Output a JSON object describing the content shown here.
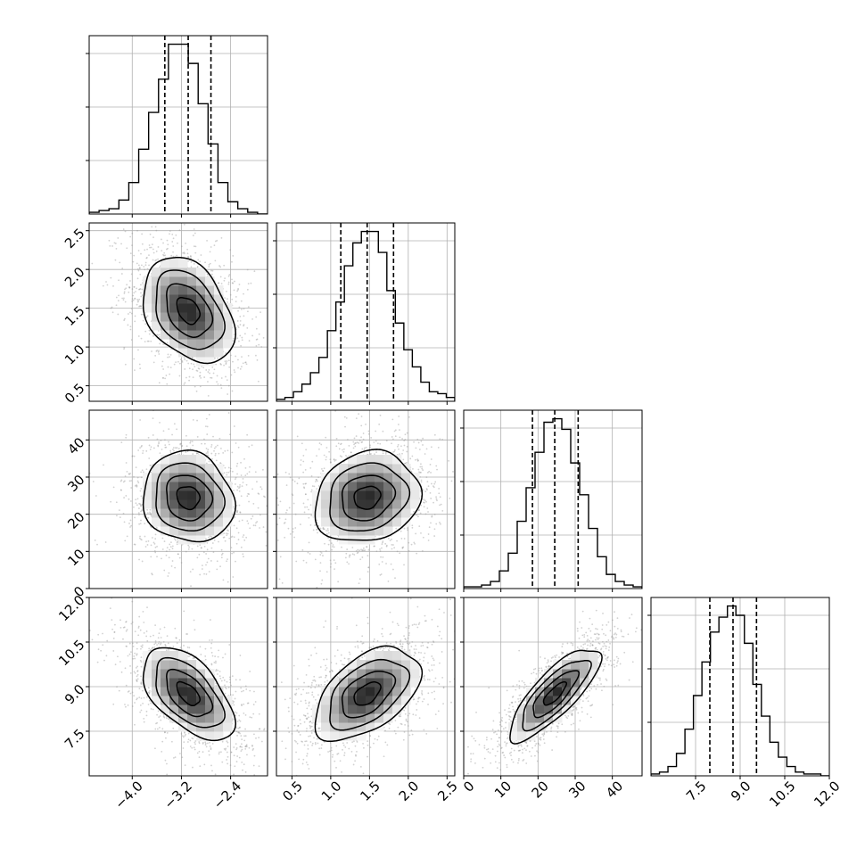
{
  "chart_data": {
    "type": "corner",
    "params": [
      {
        "xlim": [
          -4.7,
          -1.8
        ],
        "ticks": [
          -4.0,
          -3.2,
          -2.4
        ],
        "tick_labels": [
          "−4.0",
          "−3.2",
          "−2.4"
        ],
        "quantiles": [
          -3.47,
          -3.09,
          -2.72
        ]
      },
      {
        "xlim": [
          0.3,
          2.6
        ],
        "ticks": [
          0.5,
          1.0,
          1.5,
          2.0,
          2.5
        ],
        "tick_labels": [
          "0.5",
          "1.0",
          "1.5",
          "2.0",
          "2.5"
        ],
        "quantiles": [
          1.13,
          1.47,
          1.81
        ]
      },
      {
        "xlim": [
          0,
          48
        ],
        "ticks": [
          0,
          10,
          20,
          30,
          40
        ],
        "tick_labels": [
          "0",
          "10",
          "20",
          "30",
          "40"
        ],
        "quantiles": [
          18.5,
          24.5,
          30.8
        ]
      },
      {
        "xlim": [
          6.0,
          12.0
        ],
        "ticks": [
          7.5,
          9.0,
          10.5,
          12.0
        ],
        "tick_labels": [
          "7.5",
          "9.0",
          "10.5",
          "12.0"
        ],
        "quantiles": [
          7.98,
          8.76,
          9.55
        ]
      }
    ],
    "histograms": [
      {
        "counts": [
          1,
          2,
          3,
          8,
          18,
          37,
          58,
          77,
          97,
          97,
          86,
          63,
          40,
          18,
          7,
          3,
          1,
          0
        ]
      },
      {
        "counts": [
          1,
          2,
          5,
          9,
          15,
          23,
          37,
          52,
          71,
          83,
          89,
          89,
          78,
          58,
          41,
          27,
          18,
          10,
          5,
          4,
          2
        ]
      },
      {
        "counts": [
          1,
          1,
          2,
          4,
          10,
          20,
          38,
          57,
          77,
          94,
          96,
          90,
          71,
          53,
          34,
          18,
          8,
          4,
          2,
          1
        ]
      },
      {
        "counts": [
          1,
          2,
          5,
          12,
          25,
          43,
          61,
          77,
          85,
          91,
          86,
          71,
          49,
          32,
          18,
          10,
          5,
          2,
          1,
          1,
          0
        ]
      }
    ],
    "correlations": [
      {
        "pair": [
          0,
          1
        ],
        "means": [
          -3.09,
          1.47
        ],
        "sds": [
          0.37,
          0.34
        ],
        "rho": -0.35
      },
      {
        "pair": [
          0,
          2
        ],
        "means": [
          -3.09,
          24.5
        ],
        "sds": [
          0.37,
          6.1
        ],
        "rho": -0.1
      },
      {
        "pair": [
          1,
          2
        ],
        "means": [
          1.47,
          24.5
        ],
        "sds": [
          0.34,
          6.1
        ],
        "rho": 0.15
      },
      {
        "pair": [
          0,
          3
        ],
        "means": [
          -3.09,
          8.76
        ],
        "sds": [
          0.37,
          0.78
        ],
        "rho": -0.55
      },
      {
        "pair": [
          1,
          3
        ],
        "means": [
          1.47,
          8.76
        ],
        "sds": [
          0.34,
          0.78
        ],
        "rho": 0.5
      },
      {
        "pair": [
          2,
          3
        ],
        "means": [
          24.5,
          8.76
        ],
        "sds": [
          6.1,
          0.78
        ],
        "rho": 0.8
      }
    ],
    "grid": true,
    "contour_levels": 4
  }
}
